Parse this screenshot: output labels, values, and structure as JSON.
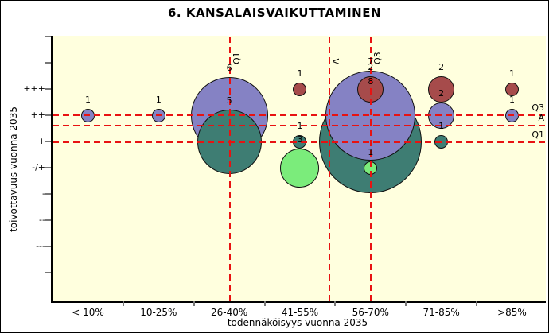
{
  "title": "6. KANSALAISVAIKUTTAMINEN",
  "x_axis": {
    "label": "todennäköisyys vuonna 2035",
    "categories": [
      "< 10%",
      "10-25%",
      "26-40%",
      "41-55%",
      "56-70%",
      "71-85%",
      ">85%"
    ]
  },
  "y_axis": {
    "label": "toivottavuus vuonna 2035",
    "ticks": [
      "+++",
      "++",
      "+",
      "-/+",
      "-",
      "--",
      "---"
    ]
  },
  "chart_data": {
    "type": "bubble",
    "title": "6. KANSALAISVAIKUTTAMINEN",
    "xlabel": "todennäköisyys vuonna 2035",
    "ylabel": "toivottavuus vuonna 2035",
    "x_categories": [
      "< 10%",
      "10-25%",
      "26-40%",
      "41-55%",
      "56-70%",
      "71-85%",
      ">85%"
    ],
    "y_scale_top_to_bottom": [
      "+++",
      "++",
      "+",
      "-/+",
      "-",
      "--",
      "---"
    ],
    "legend": "bubble label = number of answers; radius proportional to count",
    "bubbles": [
      {
        "x": "< 10%",
        "y": "++",
        "count": 1,
        "color": "purple"
      },
      {
        "x": "10-25%",
        "y": "++",
        "count": 1,
        "color": "purple"
      },
      {
        "x": "26-40%",
        "y": "++",
        "count": 6,
        "color": "purple"
      },
      {
        "x": "26-40%",
        "y": "+",
        "count": 5,
        "color": "teal"
      },
      {
        "x": "41-55%",
        "y": "+++",
        "count": 1,
        "color": "red"
      },
      {
        "x": "41-55%",
        "y": "+",
        "count": 1,
        "color": "teal"
      },
      {
        "x": "41-55%",
        "y": "-/+",
        "count": 3,
        "color": "green"
      },
      {
        "x": "56-70%",
        "y": "+",
        "count": 8,
        "color": "teal"
      },
      {
        "x": "56-70%",
        "y": "++",
        "count": 7,
        "color": "purple"
      },
      {
        "x": "56-70%",
        "y": "+++",
        "count": 2,
        "color": "red"
      },
      {
        "x": "56-70%",
        "y": "-/+",
        "count": 1,
        "color": "green"
      },
      {
        "x": "71-85%",
        "y": "+++",
        "count": 2,
        "color": "red"
      },
      {
        "x": "71-85%",
        "y": "++",
        "count": 2,
        "color": "purple"
      },
      {
        "x": "71-85%",
        "y": "+",
        "count": 1,
        "color": "teal"
      },
      {
        "x": ">85%",
        "y": "+++",
        "count": 1,
        "color": "red"
      },
      {
        "x": ">85%",
        "y": "++",
        "count": 1,
        "color": "purple"
      }
    ],
    "reference_lines": {
      "vertical": [
        {
          "label": "Q1",
          "x_rel": 222.5
        },
        {
          "label": "A",
          "x_rel": 347.5
        },
        {
          "label": "Q3",
          "x_rel": 399.5
        }
      ],
      "horizontal": [
        {
          "label": "Q3",
          "y_rel": 99.5
        },
        {
          "label": "A",
          "y_rel": 112.5
        },
        {
          "label": "Q1",
          "y_rel": 133.5
        }
      ]
    },
    "colors": {
      "purple": "#8582C4",
      "teal": "#3E7D73",
      "red": "#A64B4B",
      "green": "#7BEC7B",
      "plot_background": "#FFFFDE",
      "reference_line": "#E81212",
      "axis": "#000000"
    }
  }
}
